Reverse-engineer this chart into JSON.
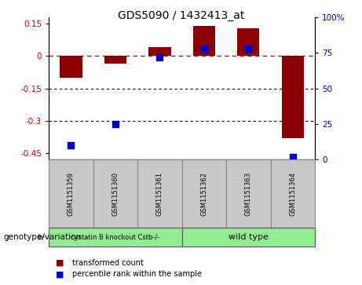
{
  "title": "GDS5090 / 1432413_at",
  "samples": [
    "GSM1151359",
    "GSM1151360",
    "GSM1151361",
    "GSM1151362",
    "GSM1151363",
    "GSM1151364"
  ],
  "red_bars": [
    -0.1,
    -0.035,
    0.04,
    0.14,
    0.13,
    -0.38
  ],
  "blue_dot_right": [
    10,
    25,
    72,
    78,
    78,
    2
  ],
  "ylim_left": [
    -0.48,
    0.18
  ],
  "ylim_right": [
    0,
    100
  ],
  "yticks_left": [
    0.15,
    0.0,
    -0.15,
    -0.3,
    -0.45
  ],
  "yticks_right": [
    100,
    75,
    50,
    25,
    0
  ],
  "hlines": [
    -0.15,
    -0.3
  ],
  "dashed_hline": 0.0,
  "group1_color": "#90EE90",
  "group2_color": "#90EE90",
  "group1_label": "cystatin B knockout Cstb-/-",
  "group2_label": "wild type",
  "group1_count": 3,
  "group2_count": 3,
  "bar_color": "#8B0000",
  "dot_color": "#0000CD",
  "legend_bar_label": "transformed count",
  "legend_dot_label": "percentile rank within the sample",
  "xlabel_genotype": "genotype/variation",
  "bar_width": 0.5,
  "dot_size": 40,
  "gray_bg": "#C8C8C8"
}
